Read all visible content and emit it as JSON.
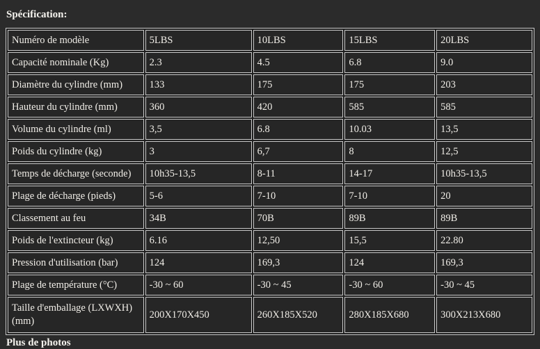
{
  "page": {
    "section_title": "Spécification:",
    "bottom_heading": "Plus de photos",
    "background_color": "#2b2b2b",
    "cell_background_color": "#262626",
    "border_color": "#c9c9c9",
    "text_color": "#f1eee8"
  },
  "table": {
    "rows": [
      {
        "label": "Numéro de modèle",
        "values": [
          "5LBS",
          "10LBS",
          "15LBS",
          "20LBS"
        ]
      },
      {
        "label": "Capacité nominale (Kg)",
        "values": [
          "2.3",
          "4.5",
          "6.8",
          "9.0"
        ]
      },
      {
        "label": "Diamètre du cylindre (mm)",
        "values": [
          "133",
          "175",
          "175",
          "203"
        ]
      },
      {
        "label": "Hauteur du cylindre (mm)",
        "values": [
          "360",
          "420",
          "585",
          "585"
        ]
      },
      {
        "label": "Volume du cylindre (ml)",
        "values": [
          "3,5",
          "6.8",
          "10.03",
          "13,5"
        ]
      },
      {
        "label": "Poids du cylindre (kg)",
        "values": [
          "3",
          "6,7",
          "8",
          "12,5"
        ]
      },
      {
        "label": "Temps de décharge (seconde)",
        "values": [
          "10h35-13,5",
          "8-11",
          "14-17",
          "10h35-13,5"
        ]
      },
      {
        "label": "Plage de décharge (pieds)",
        "values": [
          "5-6",
          "7-10",
          "7-10",
          "20"
        ]
      },
      {
        "label": "Classement au feu",
        "values": [
          "34B",
          "70B",
          "89B",
          "89B"
        ]
      },
      {
        "label": "Poids de l'extincteur (kg)",
        "values": [
          "6.16",
          "12,50",
          "15,5",
          "22.80"
        ]
      },
      {
        "label": "Pression d'utilisation (bar)",
        "values": [
          "124",
          "169,3",
          "124",
          "169,3"
        ]
      },
      {
        "label": "Plage de température (°C)",
        "values": [
          "-30 ~ 60",
          "-30 ~ 45",
          "-30 ~ 60",
          "-30 ~ 45"
        ]
      },
      {
        "label": "Taille d'emballage (LXWXH) (mm)",
        "values": [
          "200X170X450",
          "260X185X520",
          "280X185X680",
          "300X213X680"
        ]
      }
    ]
  }
}
